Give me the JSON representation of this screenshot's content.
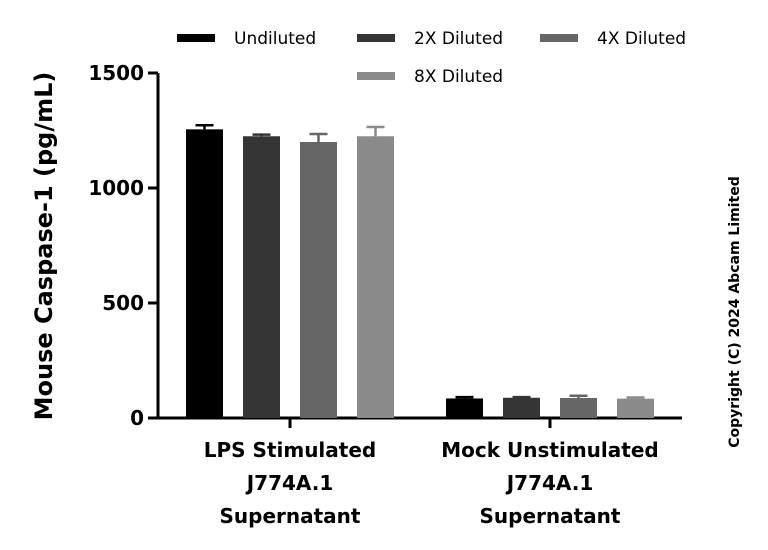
{
  "chart_data": {
    "type": "bar",
    "ylabel": "Mouse Caspase-1 (pg/mL)",
    "ylim": [
      0,
      1500
    ],
    "yticks": [
      0,
      500,
      1000,
      1500
    ],
    "categories": [
      [
        "LPS Stimulated",
        "J774A.1",
        "Supernatant"
      ],
      [
        "Mock Unstimulated",
        "J774A.1",
        "Supernatant"
      ]
    ],
    "series": [
      {
        "name": "Undiluted",
        "color": "#000000",
        "values": [
          1255,
          85
        ],
        "errors": [
          18,
          6
        ]
      },
      {
        "name": "2X Diluted",
        "color": "#353535",
        "values": [
          1225,
          88
        ],
        "errors": [
          7,
          3
        ]
      },
      {
        "name": "4X Diluted",
        "color": "#666666",
        "values": [
          1200,
          87
        ],
        "errors": [
          35,
          10
        ]
      },
      {
        "name": "8X Diluted",
        "color": "#8a8a8a",
        "values": [
          1225,
          84
        ],
        "errors": [
          40,
          5
        ]
      }
    ],
    "legend": "top",
    "grid": false,
    "annotation": "Copyright (C) 2024 Abcam Limited"
  }
}
